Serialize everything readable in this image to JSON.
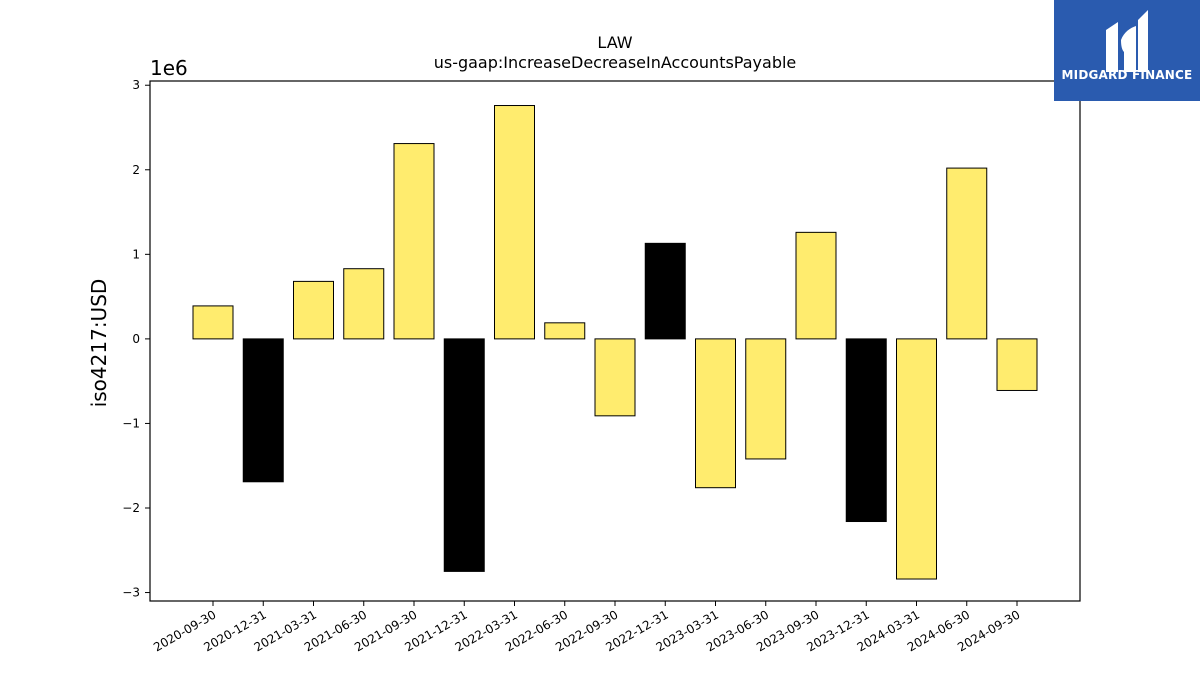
{
  "chart_data": {
    "type": "bar",
    "title": "LAW",
    "subtitle": "us-gaap:IncreaseDecreaseInAccountsPayable",
    "ylabel": "iso4217:USD",
    "xlabel": "",
    "scale_label": "1e6",
    "ylim": [
      -3100000,
      3050000
    ],
    "yticks": [
      -3,
      -2,
      -1,
      0,
      1,
      2,
      3
    ],
    "ytick_labels": [
      "−3",
      "−2",
      "−1",
      "0",
      "1",
      "2",
      "3"
    ],
    "grid": false,
    "categories": [
      "2020-09-30",
      "2020-12-31",
      "2021-03-31",
      "2021-06-30",
      "2021-09-30",
      "2021-12-31",
      "2022-03-31",
      "2022-06-30",
      "2022-09-30",
      "2022-12-31",
      "2023-03-31",
      "2023-06-30",
      "2023-09-30",
      "2023-12-31",
      "2024-03-31",
      "2024-06-30",
      "2024-09-30"
    ],
    "values": [
      390000,
      -1690000,
      680000,
      830000,
      2310000,
      -2750000,
      2760000,
      190000,
      -910000,
      1130000,
      -1760000,
      -1420000,
      1260000,
      -2160000,
      -2840000,
      2020000,
      -610000
    ],
    "bar_colors": [
      "#FFEC6E",
      "#000000",
      "#FFEC6E",
      "#FFEC6E",
      "#FFEC6E",
      "#000000",
      "#FFEC6E",
      "#FFEC6E",
      "#FFEC6E",
      "#000000",
      "#FFEC6E",
      "#FFEC6E",
      "#FFEC6E",
      "#000000",
      "#FFEC6E",
      "#FFEC6E",
      "#FFEC6E"
    ]
  },
  "logo": {
    "text": "MIDGARD FINANCE",
    "background": "#2A5BAF",
    "icon": "midgard-logo-icon"
  }
}
